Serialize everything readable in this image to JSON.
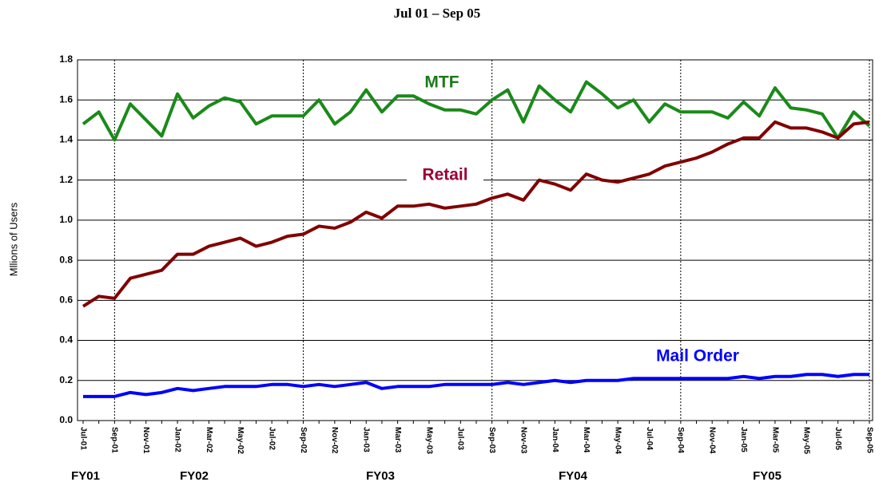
{
  "chart_data": {
    "type": "line",
    "title": "Jul 01 – Sep 05",
    "y_label": "Mllions of Users",
    "categories": [
      "Jul-01",
      null,
      "Sep-01",
      null,
      "Nov-01",
      null,
      "Jan-02",
      null,
      "Mar-02",
      null,
      "May-02",
      null,
      "Jul-02",
      null,
      "Sep-02",
      null,
      "Nov-02",
      null,
      "Jan-03",
      null,
      "Mar-03",
      null,
      "May-03",
      null,
      "Jul-03",
      null,
      "Sep-03",
      null,
      "Nov-03",
      null,
      "Jan-04",
      null,
      "Mar-04",
      null,
      "May-04",
      null,
      "Jul-04",
      null,
      "Sep-04",
      null,
      "Nov-04",
      null,
      "Jan-05",
      null,
      "Mar-05",
      null,
      "May-05",
      null,
      "Jul-05",
      null,
      "Sep-05"
    ],
    "series": [
      {
        "name": "MTF",
        "color": "#1a8a1a",
        "label_color": "#1a7a1a",
        "values": [
          1.48,
          1.54,
          1.4,
          1.58,
          1.5,
          1.42,
          1.63,
          1.51,
          1.57,
          1.61,
          1.59,
          1.48,
          1.52,
          1.52,
          1.52,
          1.6,
          1.48,
          1.54,
          1.65,
          1.54,
          1.62,
          1.62,
          1.58,
          1.55,
          1.55,
          1.53,
          1.6,
          1.65,
          1.49,
          1.67,
          1.6,
          1.54,
          1.69,
          1.63,
          1.56,
          1.6,
          1.49,
          1.58,
          1.54,
          1.54,
          1.54,
          1.51,
          1.59,
          1.52,
          1.66,
          1.56,
          1.55,
          1.53,
          1.41,
          1.54,
          1.47
        ]
      },
      {
        "name": "Retail",
        "color": "#800000",
        "label_color": "#990033",
        "values": [
          0.57,
          0.62,
          0.61,
          0.71,
          0.73,
          0.75,
          0.83,
          0.83,
          0.87,
          0.89,
          0.91,
          0.87,
          0.89,
          0.92,
          0.93,
          0.97,
          0.96,
          0.99,
          1.04,
          1.01,
          1.07,
          1.07,
          1.08,
          1.06,
          1.07,
          1.08,
          1.11,
          1.13,
          1.1,
          1.2,
          1.18,
          1.15,
          1.23,
          1.2,
          1.19,
          1.21,
          1.23,
          1.27,
          1.29,
          1.31,
          1.34,
          1.38,
          1.41,
          1.41,
          1.49,
          1.46,
          1.46,
          1.44,
          1.41,
          1.48,
          1.49
        ]
      },
      {
        "name": "Mail Order",
        "color": "#0000ff",
        "label_color": "#0000ff",
        "values": [
          0.12,
          0.12,
          0.12,
          0.14,
          0.13,
          0.14,
          0.16,
          0.15,
          0.16,
          0.17,
          0.17,
          0.17,
          0.18,
          0.18,
          0.17,
          0.18,
          0.17,
          0.18,
          0.19,
          0.16,
          0.17,
          0.17,
          0.17,
          0.18,
          0.18,
          0.18,
          0.18,
          0.19,
          0.18,
          0.19,
          0.2,
          0.19,
          0.2,
          0.2,
          0.2,
          0.21,
          0.21,
          0.21,
          0.21,
          0.21,
          0.21,
          0.21,
          0.22,
          0.21,
          0.22,
          0.22,
          0.23,
          0.23,
          0.22,
          0.23,
          0.23
        ]
      }
    ],
    "fiscal_years": [
      "FY01",
      "FY02",
      "FY03",
      "FY04",
      "FY05"
    ],
    "ylim": [
      0,
      1.8
    ],
    "yticks": [
      {
        "value": 0,
        "label": "0.0"
      },
      0.2,
      0.4,
      0.6,
      0.8,
      {
        "value": 1,
        "label": "1.0"
      },
      1.2,
      1.4,
      1.6,
      1.8
    ],
    "grid": true
  }
}
